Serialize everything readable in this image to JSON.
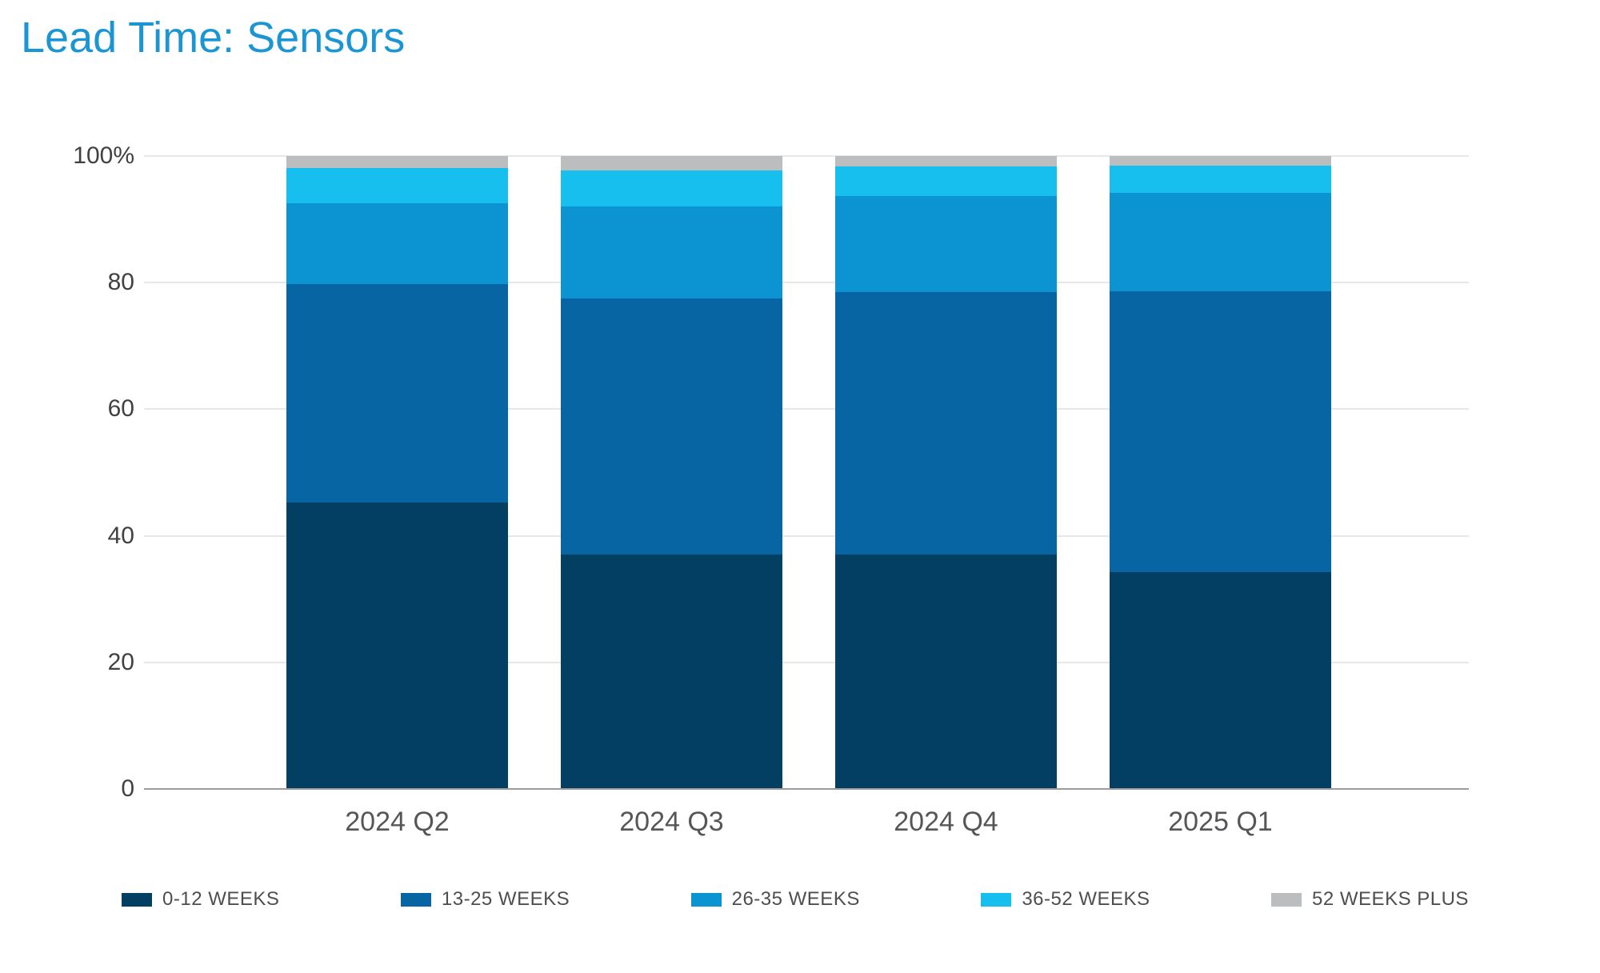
{
  "title": "Lead Time: Sensors",
  "colors": {
    "title_text": "#1B96D3",
    "y_tick_text": "#414042",
    "x_tick_text": "#555658",
    "legend_text": "#4D4E50",
    "gridline": "#E7E7E7",
    "axis_line": "#9C9C9C",
    "background": "#FFFFFF"
  },
  "chart_data": {
    "type": "bar",
    "subtype": "stacked-100-percent-vertical",
    "title": "Lead Time: Sensors",
    "xlabel": "",
    "ylabel": "",
    "ylim": [
      0,
      100
    ],
    "grid": true,
    "legend_position": "bottom",
    "categories": [
      "2024 Q2",
      "2024 Q3",
      "2024 Q4",
      "2025 Q1"
    ],
    "yticks": [
      {
        "value": 0,
        "label": "0"
      },
      {
        "value": 20,
        "label": "20"
      },
      {
        "value": 40,
        "label": "40"
      },
      {
        "value": 60,
        "label": "60"
      },
      {
        "value": 80,
        "label": "80"
      },
      {
        "value": 100,
        "label": "100%"
      }
    ],
    "series": [
      {
        "name": "0-12 WEEKS",
        "color": "#033F63",
        "values": [
          45.3,
          37.1,
          37.0,
          34.2
        ]
      },
      {
        "name": "13-25 WEEKS",
        "color": "#0765A3",
        "values": [
          34.5,
          40.4,
          41.5,
          44.4
        ]
      },
      {
        "name": "26-35 WEEKS",
        "color": "#0C93D2",
        "values": [
          12.7,
          14.5,
          15.2,
          15.6
        ]
      },
      {
        "name": "36-52 WEEKS",
        "color": "#17BFEF",
        "values": [
          5.6,
          5.7,
          4.6,
          4.3
        ]
      },
      {
        "name": "52 WEEKS PLUS",
        "color": "#BBBDBF",
        "values": [
          1.9,
          2.3,
          1.7,
          1.5
        ]
      }
    ]
  }
}
